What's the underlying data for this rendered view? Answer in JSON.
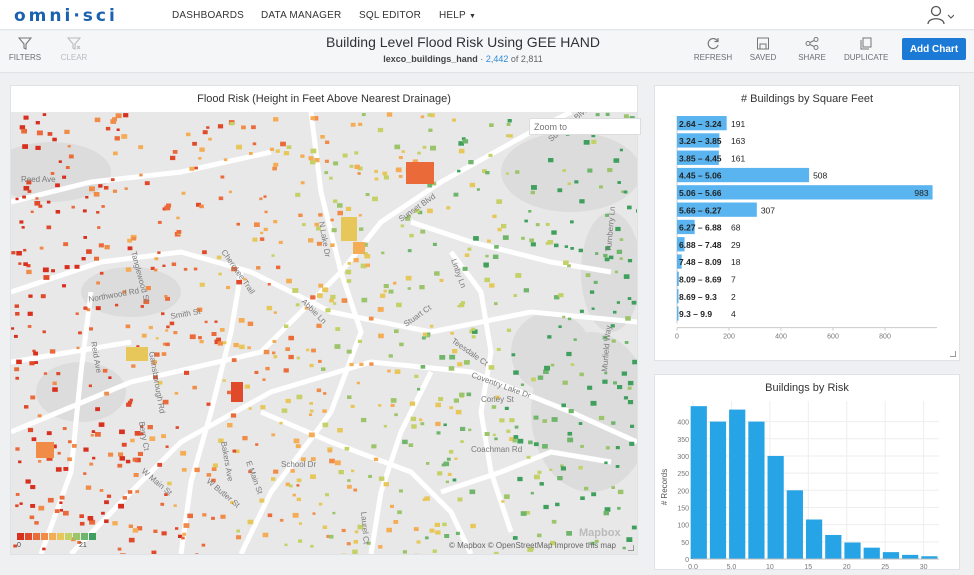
{
  "app": {
    "logo": "omni·sci",
    "nav": [
      "DASHBOARDS",
      "DATA MANAGER",
      "SQL EDITOR",
      "HELP"
    ]
  },
  "toolbar": {
    "filters_label": "FILTERS",
    "clear_label": "CLEAR",
    "refresh_label": "REFRESH",
    "saved_label": "SAVED",
    "share_label": "SHARE",
    "duplicate_label": "DUPLICATE",
    "add_chart_label": "Add Chart"
  },
  "dashboard": {
    "title": "Building Level Flood Risk Using GEE HAND",
    "table_name": "lexco_buildings_hand",
    "separator": "·",
    "filtered_count": "2,442",
    "of_label": "of",
    "total_count": "2,811"
  },
  "map": {
    "title": "Flood Risk (Height in Feet Above Nearest Drainage)",
    "zoom_placeholder": "Zoom to",
    "legend_min": "0",
    "legend_max": "21",
    "legend_colors": [
      "#d7301f",
      "#e04a2a",
      "#ea6a3a",
      "#f08c48",
      "#f5ad55",
      "#e7c75a",
      "#c5d166",
      "#9cc46a",
      "#6fb56b",
      "#3f9f5c"
    ],
    "attribution": "© Mapbox  © OpenStreetMap  Improve this map",
    "mapbox_logo": "Mapbox",
    "streets": [
      "Reed Ave",
      "Northwood Rd",
      "Smith St",
      "Gainsborough Rd",
      "Abbie Ln",
      "Sunset Blvd",
      "N Lake Dr",
      "Cherokee Trail",
      "Linby Ln",
      "Suncrest Blvd",
      "Teesdale Ct",
      "Coventry Lake Dr",
      "Corley St",
      "Coachman Rd",
      "Berry Ct",
      "Bakers Ave",
      "W Main St",
      "E Main St",
      "W Butler St",
      "School Dr",
      "Laurel Ct",
      "Turnberry Ln",
      "Murfield Way",
      "Stuart Ct",
      "Tanglewood St",
      "Reid Ave"
    ]
  },
  "sqft_chart": {
    "title": "# Buildings by Square Feet",
    "chart_data": {
      "type": "bar",
      "orientation": "horizontal",
      "categories": [
        "2.64 – 3.24",
        "3.24 – 3.85",
        "3.85 – 4.45",
        "4.45 – 5.06",
        "5.06 – 5.66",
        "5.66 – 6.27",
        "6.27 – 6.88",
        "6.88 – 7.48",
        "7.48 – 8.09",
        "8.09 – 8.69",
        "8.69 – 9.3",
        "9.3 – 9.9"
      ],
      "values": [
        191,
        163,
        161,
        508,
        983,
        307,
        68,
        29,
        18,
        7,
        2,
        4
      ],
      "xticks": [
        0,
        200,
        400,
        600,
        800
      ],
      "xlim": [
        0,
        1000
      ],
      "bar_color": "#5ab4ef"
    }
  },
  "risk_chart": {
    "title": "Buildings by Risk",
    "chart_data": {
      "type": "bar",
      "ylabel": "# Records",
      "x": [
        0.75,
        3.25,
        5.75,
        8.25,
        10.75,
        13.25,
        15.75,
        18.25,
        20.75,
        23.25,
        25.75,
        28.25,
        30.75
      ],
      "values": [
        445,
        400,
        435,
        400,
        300,
        200,
        115,
        70,
        48,
        33,
        20,
        12,
        8
      ],
      "xticks": [
        "0.0",
        "5.0",
        "10",
        "15",
        "20",
        "25",
        "30"
      ],
      "yticks": [
        0,
        50,
        100,
        150,
        200,
        250,
        300,
        350,
        400
      ],
      "ylim": [
        0,
        460
      ],
      "bar_color": "#27a4e6"
    }
  }
}
